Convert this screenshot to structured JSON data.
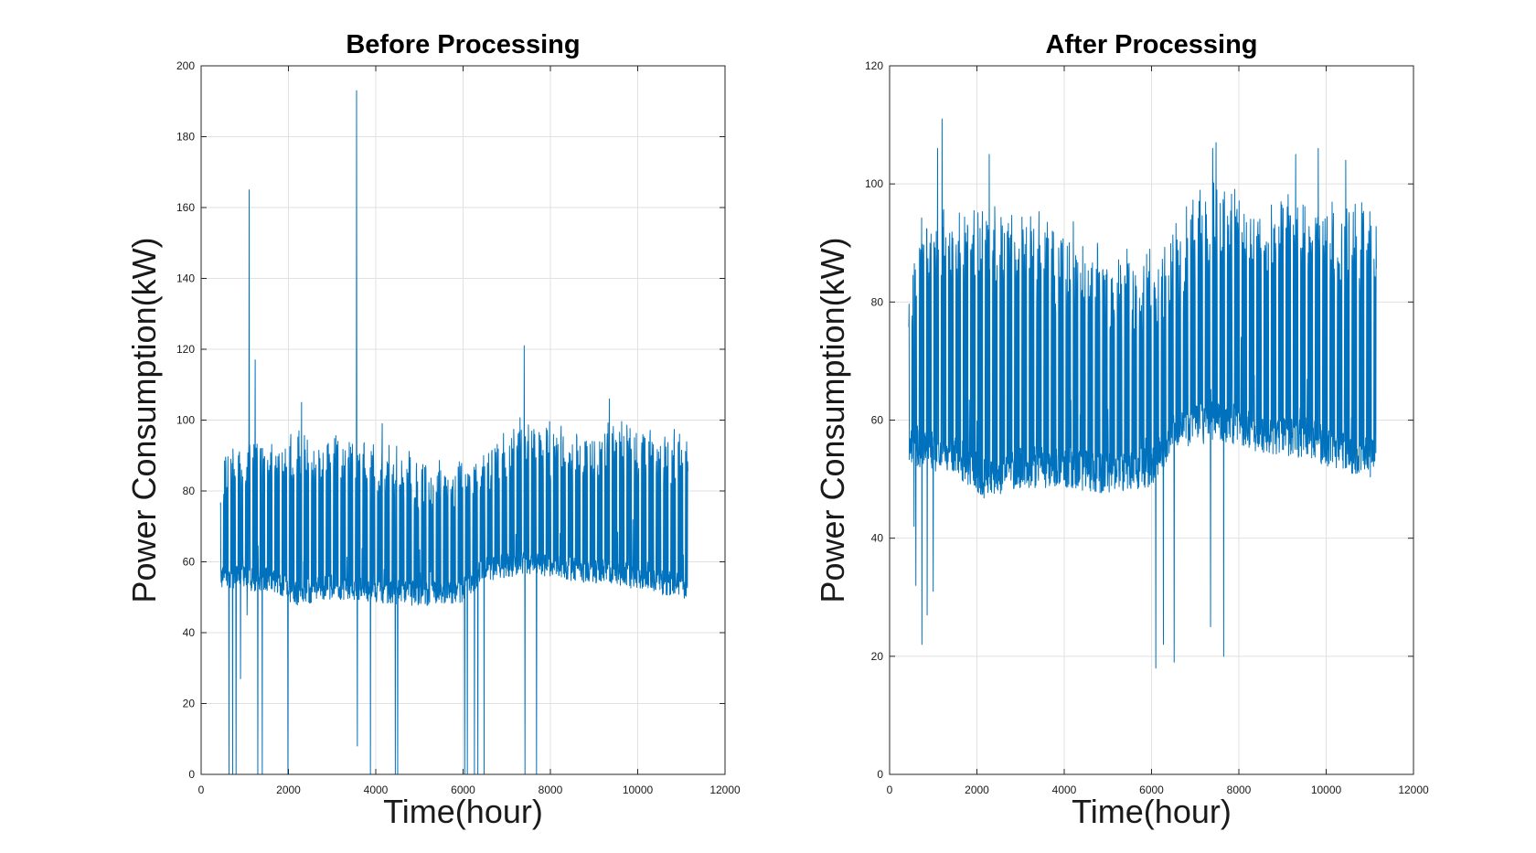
{
  "chart_data": [
    {
      "type": "line",
      "title": "Before Processing",
      "xlabel": "Time(hour)",
      "ylabel": "Power Consumption(kW)",
      "xlim": [
        0,
        12000
      ],
      "ylim": [
        0,
        200
      ],
      "xticks": [
        0,
        2000,
        4000,
        6000,
        8000,
        10000,
        12000
      ],
      "yticks": [
        0,
        20,
        40,
        60,
        80,
        100,
        120,
        140,
        160,
        180,
        200
      ],
      "grid": true,
      "line_color": "#0072BD",
      "data_range_x": [
        440,
        11150
      ],
      "baseline": [
        [
          440,
          56
        ],
        [
          1500,
          55
        ],
        [
          2200,
          51
        ],
        [
          3000,
          53
        ],
        [
          4000,
          52
        ],
        [
          5000,
          51
        ],
        [
          6000,
          52
        ],
        [
          6500,
          58
        ],
        [
          7500,
          60
        ],
        [
          8500,
          58
        ],
        [
          9500,
          57
        ],
        [
          10200,
          55
        ],
        [
          11150,
          53
        ]
      ],
      "peak_envelope": [
        [
          440,
          88
        ],
        [
          1000,
          93
        ],
        [
          2000,
          95
        ],
        [
          3000,
          95
        ],
        [
          4000,
          92
        ],
        [
          5000,
          88
        ],
        [
          6000,
          87
        ],
        [
          6500,
          92
        ],
        [
          7500,
          100
        ],
        [
          8500,
          96
        ],
        [
          9500,
          99
        ],
        [
          10200,
          95
        ],
        [
          11150,
          96
        ]
      ],
      "spikes": [
        [
          1100,
          165
        ],
        [
          1240,
          117
        ],
        [
          2300,
          105
        ],
        [
          3560,
          193
        ],
        [
          4150,
          99
        ],
        [
          7400,
          121
        ],
        [
          9350,
          106
        ]
      ],
      "dropouts": [
        [
          640,
          0
        ],
        [
          720,
          0
        ],
        [
          800,
          0
        ],
        [
          900,
          27
        ],
        [
          1050,
          45
        ],
        [
          1300,
          0
        ],
        [
          1400,
          0
        ],
        [
          1990,
          0
        ],
        [
          3580,
          8
        ],
        [
          3880,
          0
        ],
        [
          4450,
          0
        ],
        [
          4500,
          0
        ],
        [
          6040,
          0
        ],
        [
          6100,
          0
        ],
        [
          6260,
          0
        ],
        [
          6340,
          0
        ],
        [
          6480,
          0
        ],
        [
          7420,
          0
        ],
        [
          7680,
          0
        ]
      ]
    },
    {
      "type": "line",
      "title": "After Processing",
      "xlabel": "Time(hour)",
      "ylabel": "Power Consumption(kW)",
      "xlim": [
        0,
        12000
      ],
      "ylim": [
        0,
        120
      ],
      "xticks": [
        0,
        2000,
        4000,
        6000,
        8000,
        10000,
        12000
      ],
      "yticks": [
        0,
        20,
        40,
        60,
        80,
        100,
        120
      ],
      "grid": true,
      "line_color": "#0072BD",
      "data_range_x": [
        440,
        11150
      ],
      "baseline": [
        [
          440,
          56
        ],
        [
          1500,
          54
        ],
        [
          2200,
          50
        ],
        [
          3000,
          52
        ],
        [
          4000,
          52
        ],
        [
          5000,
          51
        ],
        [
          6000,
          52
        ],
        [
          6500,
          58
        ],
        [
          7500,
          60
        ],
        [
          8500,
          58
        ],
        [
          9500,
          57
        ],
        [
          10200,
          55
        ],
        [
          11150,
          53
        ]
      ],
      "peak_envelope": [
        [
          440,
          88
        ],
        [
          1000,
          95
        ],
        [
          2000,
          95
        ],
        [
          3000,
          95
        ],
        [
          4000,
          92
        ],
        [
          5000,
          88
        ],
        [
          6000,
          87
        ],
        [
          6500,
          92
        ],
        [
          7500,
          100
        ],
        [
          8500,
          96
        ],
        [
          9500,
          99
        ],
        [
          10200,
          95
        ],
        [
          11150,
          96
        ]
      ],
      "spikes": [
        [
          1200,
          111
        ],
        [
          1100,
          106
        ],
        [
          2280,
          105
        ],
        [
          7400,
          106
        ],
        [
          7480,
          107
        ],
        [
          9300,
          105
        ],
        [
          9820,
          106
        ],
        [
          10450,
          104
        ]
      ],
      "dropouts": [
        [
          560,
          42
        ],
        [
          600,
          32
        ],
        [
          740,
          22
        ],
        [
          860,
          27
        ],
        [
          1000,
          31
        ],
        [
          6100,
          18
        ],
        [
          6270,
          22
        ],
        [
          6520,
          19
        ],
        [
          7350,
          25
        ],
        [
          7650,
          20
        ]
      ]
    }
  ]
}
